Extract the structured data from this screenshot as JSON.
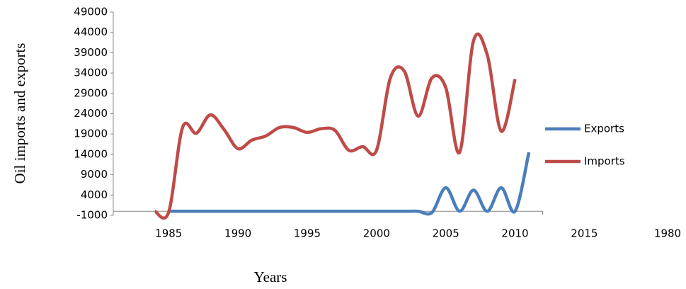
{
  "chart_data": {
    "type": "line",
    "y_label": "Oil imports and exports",
    "x_label": "Years",
    "x": [
      1984,
      1985,
      1986,
      1987,
      1988,
      1989,
      1990,
      1991,
      1992,
      1993,
      1994,
      1995,
      1996,
      1997,
      1998,
      1999,
      2000,
      2001,
      2002,
      2003,
      2004,
      2005,
      2006,
      2007,
      2008,
      2009,
      2010,
      2011
    ],
    "series": [
      {
        "name": "Exports",
        "color": "#4a7ebb",
        "values": [
          null,
          0,
          0,
          0,
          0,
          0,
          0,
          0,
          0,
          0,
          0,
          0,
          0,
          0,
          0,
          0,
          0,
          0,
          0,
          0,
          -300,
          5800,
          0,
          5200,
          0,
          5800,
          0,
          14500
        ]
      },
      {
        "name": "Imports",
        "color": "#be4b48",
        "values": [
          0,
          -200,
          20600,
          19200,
          23700,
          20100,
          15400,
          17500,
          18500,
          20600,
          20600,
          19400,
          20300,
          19900,
          15000,
          15900,
          15000,
          32800,
          34500,
          23400,
          32800,
          30400,
          14500,
          41900,
          38400,
          19700,
          32500,
          null
        ]
      }
    ],
    "xlim": [
      1981,
      2012
    ],
    "xticks": [
      1985,
      1990,
      1995,
      2000,
      2005,
      2010,
      2015
    ],
    "x_extra_label": "1980",
    "ylim": [
      -1000,
      49000
    ],
    "yticks": [
      -1000,
      4000,
      9000,
      14000,
      19000,
      24000,
      29000,
      34000,
      39000,
      44000,
      49000
    ],
    "smooth": true
  }
}
